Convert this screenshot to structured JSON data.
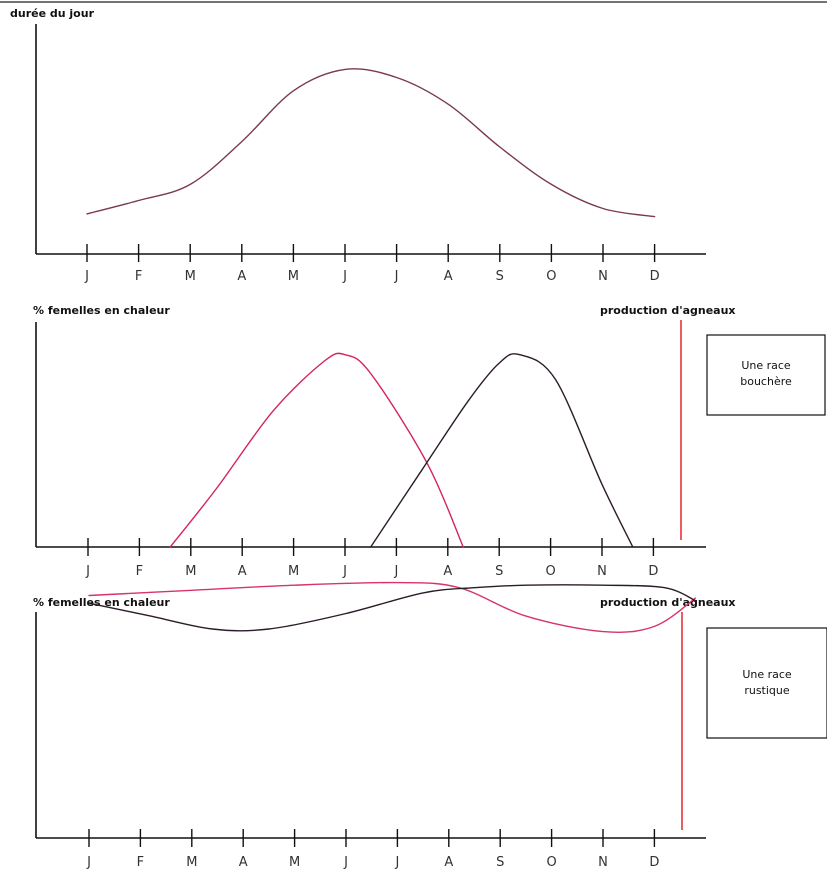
{
  "chart_data": [
    {
      "type": "line",
      "ylabel": "durée du jour",
      "xlabel": "",
      "categories": [
        "J",
        "F",
        "M",
        "A",
        "M",
        "J",
        "J",
        "A",
        "S",
        "O",
        "N",
        "D"
      ],
      "series": [
        {
          "values": [
            1.5,
            2.0,
            2.6,
            4.2,
            6.1,
            6.9,
            6.6,
            5.6,
            4.0,
            2.6,
            1.7,
            1.4
          ]
        }
      ],
      "ylim": [
        0,
        8
      ],
      "colors": [
        "#7a3a52"
      ],
      "grid": false
    },
    {
      "type": "line",
      "ylabel": "% femelles en chaleur",
      "right_label": "production d'agneaux",
      "categories": [
        "J",
        "F",
        "M",
        "A",
        "M",
        "J",
        "J",
        "A",
        "S",
        "O",
        "N",
        "D"
      ],
      "series": [
        {
          "x": [
            1.6,
            2.5,
            3.6,
            4.6,
            5.0,
            5.5,
            6.6,
            7.3
          ],
          "values": [
            0,
            2.8,
            6.5,
            8.9,
            9.2,
            8.3,
            4.0,
            0
          ]
        },
        {
          "x": [
            5.5,
            6.5,
            7.4,
            8.0,
            8.4,
            9.1,
            10.0,
            10.6
          ],
          "values": [
            0,
            3.7,
            7.0,
            8.8,
            9.2,
            8.0,
            3.0,
            0
          ]
        }
      ],
      "ylim": [
        0,
        10
      ],
      "colors": [
        "#d4245a",
        "#2b1c2a"
      ],
      "box_text": [
        "Une race",
        "bouchère"
      ]
    },
    {
      "type": "line",
      "ylabel": "% femelles en chaleur",
      "right_label": "production d'agneaux",
      "categories": [
        "J",
        "F",
        "M",
        "A",
        "M",
        "J",
        "J",
        "A",
        "S",
        "O",
        "N",
        "D"
      ],
      "series": [
        {
          "x": [
            0,
            2,
            4,
            6,
            7.2,
            8.5,
            10,
            11,
            11.8
          ],
          "values": [
            9.4,
            9.6,
            9.8,
            9.9,
            9.7,
            8.6,
            8.0,
            8.2,
            9.3
          ]
        },
        {
          "x": [
            0,
            1.2,
            2.4,
            3.5,
            5,
            6.5,
            7.5,
            8.5,
            10,
            11.2,
            11.8
          ],
          "values": [
            9.1,
            8.6,
            8.1,
            8.1,
            8.7,
            9.5,
            9.7,
            9.8,
            9.8,
            9.7,
            9.2
          ]
        }
      ],
      "ylim": [
        0,
        10
      ],
      "colors": [
        "#d8336a",
        "#2b1c2a"
      ],
      "box_text": [
        "Une race",
        "rustique"
      ]
    }
  ]
}
